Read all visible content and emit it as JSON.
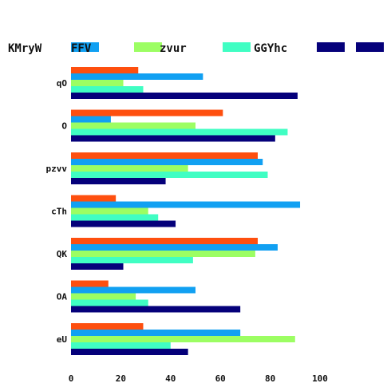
{
  "chart_data": {
    "type": "bar",
    "orientation": "horizontal",
    "categories": [
      "qO",
      "O",
      "pzvv",
      "cTh",
      "QK",
      "OA",
      "eU"
    ],
    "series": [
      {
        "name": "KMryW",
        "color": "#fe4f0f",
        "values": [
          27,
          61,
          75,
          18,
          75,
          15,
          29
        ]
      },
      {
        "name": "FFV",
        "color": "#11a0f2",
        "values": [
          53,
          16,
          77,
          92,
          83,
          50,
          68
        ]
      },
      {
        "name": "zvur",
        "color": "#9cfe63",
        "values": [
          21,
          50,
          47,
          31,
          74,
          26,
          90
        ]
      },
      {
        "name": "GGYhc",
        "color": "#40fec3",
        "values": [
          29,
          87,
          79,
          35,
          49,
          31,
          40
        ]
      },
      {
        "name": "",
        "color": "#05007a",
        "values": [
          91,
          82,
          38,
          42,
          21,
          68,
          47
        ]
      }
    ],
    "xlim": [
      0,
      100
    ],
    "xticks": [
      "0",
      "20",
      "40",
      "60",
      "80",
      "100"
    ],
    "grid": false,
    "legend_position": "top"
  }
}
